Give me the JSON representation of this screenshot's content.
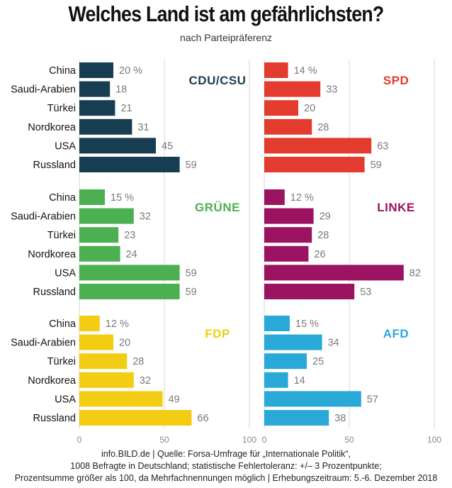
{
  "title": "Welches Land ist am gefährlichsten?",
  "subtitle": "nach Parteipräferenz",
  "footnote": [
    "info.BILD.de | Quelle: Forsa-Umfrage für „Internationale Politik“,",
    "1008 Befragte in Deutschland; statistische Fehlertoleranz: +/– 3 Prozentpunkte;",
    "Prozentsumme größer als 100, da Mehrfachnennungen möglich | Erhebungszeitraum: 5.-6. Dezember 2018"
  ],
  "chart_data": [
    {
      "type": "bar",
      "title": "CDU/CSU",
      "color": "#173d52",
      "categories": [
        "China",
        "Saudi-Arabien",
        "Türkei",
        "Nordkorea",
        "USA",
        "Russland"
      ],
      "values": [
        20,
        18,
        21,
        31,
        45,
        59
      ],
      "first_label_suffix": " %",
      "xlim": [
        0,
        100
      ]
    },
    {
      "type": "bar",
      "title": "SPD",
      "color": "#e43b2f",
      "categories": [
        "China",
        "Saudi-Arabien",
        "Türkei",
        "Nordkorea",
        "USA",
        "Russland"
      ],
      "values": [
        14,
        33,
        20,
        28,
        63,
        59
      ],
      "first_label_suffix": " %",
      "xlim": [
        0,
        100
      ]
    },
    {
      "type": "bar",
      "title": "GRÜNE",
      "color": "#4caf50",
      "categories": [
        "China",
        "Saudi-Arabien",
        "Türkei",
        "Nordkorea",
        "USA",
        "Russland"
      ],
      "values": [
        15,
        32,
        23,
        24,
        59,
        59
      ],
      "first_label_suffix": " %",
      "xlim": [
        0,
        100
      ]
    },
    {
      "type": "bar",
      "title": "LINKE",
      "color": "#9b1361",
      "categories": [
        "China",
        "Saudi-Arabien",
        "Türkei",
        "Nordkorea",
        "USA",
        "Russland"
      ],
      "values": [
        12,
        29,
        28,
        26,
        82,
        53
      ],
      "first_label_suffix": " %",
      "xlim": [
        0,
        100
      ]
    },
    {
      "type": "bar",
      "title": "FDP",
      "color": "#f2cd14",
      "categories": [
        "China",
        "Saudi-Arabien",
        "Türkei",
        "Nordkorea",
        "USA",
        "Russland"
      ],
      "values": [
        12,
        20,
        28,
        32,
        49,
        66
      ],
      "first_label_suffix": " %",
      "xlim": [
        0,
        100
      ]
    },
    {
      "type": "bar",
      "title": "AFD",
      "color": "#2aa8d8",
      "categories": [
        "China",
        "Saudi-Arabien",
        "Türkei",
        "Nordkorea",
        "USA",
        "Russland"
      ],
      "values": [
        15,
        34,
        25,
        14,
        57,
        38
      ],
      "first_label_suffix": " %",
      "xlim": [
        0,
        100
      ]
    }
  ],
  "x_ticks": [
    "0",
    "50",
    "100"
  ]
}
